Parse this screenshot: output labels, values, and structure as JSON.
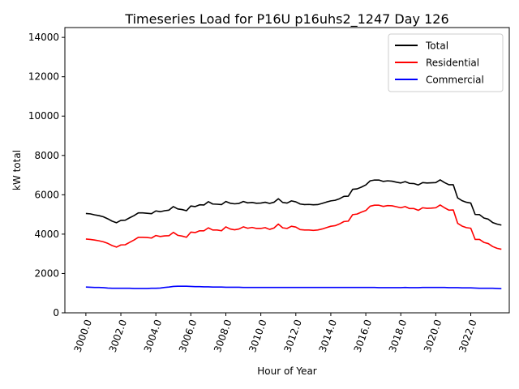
{
  "chart_data": {
    "type": "line",
    "title": "Timeseries Load for P16U p16uhs2_1247  Day 126",
    "xlabel": "Hour of Year",
    "ylabel": "kW total",
    "xlim": [
      2998.8,
      3024.2
    ],
    "ylim": [
      0,
      14500
    ],
    "xticks": [
      3000,
      3002,
      3004,
      3006,
      3008,
      3010,
      3012,
      3014,
      3016,
      3018,
      3020,
      3022
    ],
    "xtick_labels": [
      "3000.0",
      "3002.0",
      "3004.0",
      "3006.0",
      "3008.0",
      "3010.0",
      "3012.0",
      "3014.0",
      "3016.0",
      "3018.0",
      "3020.0",
      "3022.0"
    ],
    "yticks": [
      0,
      2000,
      4000,
      6000,
      8000,
      10000,
      12000,
      14000
    ],
    "ytick_labels": [
      "0",
      "2000",
      "4000",
      "6000",
      "8000",
      "10000",
      "12000",
      "14000"
    ],
    "grid": false,
    "legend_position": "top-right",
    "series": [
      {
        "name": "Total",
        "color": "#000000",
        "x": [
          3000.0,
          3000.25,
          3000.5,
          3000.75,
          3001.0,
          3001.25,
          3001.5,
          3001.75,
          3002.0,
          3002.25,
          3002.5,
          3002.75,
          3003.0,
          3003.25,
          3003.5,
          3003.75,
          3004.0,
          3004.25,
          3004.5,
          3004.75,
          3005.0,
          3005.25,
          3005.5,
          3005.75,
          3006.0,
          3006.25,
          3006.5,
          3006.75,
          3007.0,
          3007.25,
          3007.5,
          3007.75,
          3008.0,
          3008.25,
          3008.5,
          3008.75,
          3009.0,
          3009.25,
          3009.5,
          3009.75,
          3010.0,
          3010.25,
          3010.5,
          3010.75,
          3011.0,
          3011.25,
          3011.5,
          3011.75,
          3012.0,
          3012.25,
          3012.5,
          3012.75,
          3013.0,
          3013.25,
          3013.5,
          3013.75,
          3014.0,
          3014.25,
          3014.5,
          3014.75,
          3015.0,
          3015.25,
          3015.5,
          3015.75,
          3016.0,
          3016.25,
          3016.5,
          3016.75,
          3017.0,
          3017.25,
          3017.5,
          3017.75,
          3018.0,
          3018.25,
          3018.5,
          3018.75,
          3019.0,
          3019.25,
          3019.5,
          3019.75,
          3020.0,
          3020.25,
          3020.5,
          3020.75,
          3021.0,
          3021.25,
          3021.5,
          3021.75,
          3022.0,
          3022.25,
          3022.5,
          3022.75,
          3023.0,
          3023.25,
          3023.5,
          3023.75
        ],
        "values": [
          5050,
          5030,
          4980,
          4940,
          4880,
          4780,
          4660,
          4580,
          4700,
          4710,
          4830,
          4940,
          5080,
          5080,
          5060,
          5040,
          5180,
          5140,
          5190,
          5220,
          5400,
          5280,
          5250,
          5190,
          5430,
          5400,
          5490,
          5480,
          5650,
          5530,
          5520,
          5500,
          5660,
          5570,
          5540,
          5560,
          5660,
          5590,
          5610,
          5570,
          5580,
          5620,
          5560,
          5620,
          5800,
          5610,
          5580,
          5690,
          5640,
          5530,
          5500,
          5510,
          5490,
          5500,
          5560,
          5630,
          5690,
          5720,
          5800,
          5920,
          5930,
          6280,
          6300,
          6390,
          6500,
          6710,
          6750,
          6750,
          6680,
          6710,
          6690,
          6640,
          6600,
          6670,
          6580,
          6570,
          6500,
          6620,
          6600,
          6610,
          6620,
          6760,
          6620,
          6510,
          6510,
          5840,
          5700,
          5620,
          5580,
          5000,
          4990,
          4820,
          4760,
          4590,
          4510,
          4460
        ]
      },
      {
        "name": "Residential",
        "color": "#ff0000",
        "x": [
          3000.0,
          3000.25,
          3000.5,
          3000.75,
          3001.0,
          3001.25,
          3001.5,
          3001.75,
          3002.0,
          3002.25,
          3002.5,
          3002.75,
          3003.0,
          3003.25,
          3003.5,
          3003.75,
          3004.0,
          3004.25,
          3004.5,
          3004.75,
          3005.0,
          3005.25,
          3005.5,
          3005.75,
          3006.0,
          3006.25,
          3006.5,
          3006.75,
          3007.0,
          3007.25,
          3007.5,
          3007.75,
          3008.0,
          3008.25,
          3008.5,
          3008.75,
          3009.0,
          3009.25,
          3009.5,
          3009.75,
          3010.0,
          3010.25,
          3010.5,
          3010.75,
          3011.0,
          3011.25,
          3011.5,
          3011.75,
          3012.0,
          3012.25,
          3012.5,
          3012.75,
          3013.0,
          3013.25,
          3013.5,
          3013.75,
          3014.0,
          3014.25,
          3014.5,
          3014.75,
          3015.0,
          3015.25,
          3015.5,
          3015.75,
          3016.0,
          3016.25,
          3016.5,
          3016.75,
          3017.0,
          3017.25,
          3017.5,
          3017.75,
          3018.0,
          3018.25,
          3018.5,
          3018.75,
          3019.0,
          3019.25,
          3019.5,
          3019.75,
          3020.0,
          3020.25,
          3020.5,
          3020.75,
          3021.0,
          3021.25,
          3021.5,
          3021.75,
          3022.0,
          3022.25,
          3022.5,
          3022.75,
          3023.0,
          3023.25,
          3023.5,
          3023.75
        ],
        "values": [
          3750,
          3730,
          3700,
          3660,
          3610,
          3530,
          3420,
          3340,
          3450,
          3460,
          3580,
          3700,
          3840,
          3840,
          3830,
          3800,
          3930,
          3880,
          3910,
          3920,
          4090,
          3940,
          3900,
          3840,
          4100,
          4080,
          4170,
          4170,
          4320,
          4210,
          4210,
          4170,
          4370,
          4260,
          4220,
          4260,
          4370,
          4300,
          4340,
          4290,
          4290,
          4330,
          4240,
          4310,
          4510,
          4320,
          4290,
          4400,
          4360,
          4230,
          4210,
          4210,
          4190,
          4210,
          4260,
          4330,
          4400,
          4430,
          4520,
          4640,
          4660,
          4990,
          5020,
          5120,
          5200,
          5420,
          5470,
          5470,
          5410,
          5450,
          5440,
          5390,
          5340,
          5400,
          5300,
          5300,
          5210,
          5340,
          5310,
          5320,
          5340,
          5480,
          5340,
          5220,
          5230,
          4550,
          4410,
          4330,
          4300,
          3730,
          3730,
          3580,
          3520,
          3370,
          3280,
          3230
        ]
      },
      {
        "name": "Commercial",
        "color": "#0000ff",
        "x": [
          3000.0,
          3000.25,
          3000.5,
          3000.75,
          3001.0,
          3001.25,
          3001.5,
          3001.75,
          3002.0,
          3002.25,
          3002.5,
          3002.75,
          3003.0,
          3003.25,
          3003.5,
          3003.75,
          3004.0,
          3004.25,
          3004.5,
          3004.75,
          3005.0,
          3005.25,
          3005.5,
          3005.75,
          3006.0,
          3006.25,
          3006.5,
          3006.75,
          3007.0,
          3007.25,
          3007.5,
          3007.75,
          3008.0,
          3008.25,
          3008.5,
          3008.75,
          3009.0,
          3009.25,
          3009.5,
          3009.75,
          3010.0,
          3010.25,
          3010.5,
          3010.75,
          3011.0,
          3011.25,
          3011.5,
          3011.75,
          3012.0,
          3012.25,
          3012.5,
          3012.75,
          3013.0,
          3013.25,
          3013.5,
          3013.75,
          3014.0,
          3014.25,
          3014.5,
          3014.75,
          3015.0,
          3015.25,
          3015.5,
          3015.75,
          3016.0,
          3016.25,
          3016.5,
          3016.75,
          3017.0,
          3017.25,
          3017.5,
          3017.75,
          3018.0,
          3018.25,
          3018.5,
          3018.75,
          3019.0,
          3019.25,
          3019.5,
          3019.75,
          3020.0,
          3020.25,
          3020.5,
          3020.75,
          3021.0,
          3021.25,
          3021.5,
          3021.75,
          3022.0,
          3022.25,
          3022.5,
          3022.75,
          3023.0,
          3023.25,
          3023.5,
          3023.75
        ],
        "values": [
          1310,
          1300,
          1290,
          1290,
          1280,
          1260,
          1250,
          1250,
          1250,
          1250,
          1250,
          1240,
          1240,
          1240,
          1240,
          1250,
          1250,
          1260,
          1290,
          1310,
          1340,
          1350,
          1350,
          1350,
          1340,
          1330,
          1330,
          1320,
          1320,
          1310,
          1310,
          1310,
          1300,
          1300,
          1300,
          1300,
          1290,
          1290,
          1290,
          1290,
          1290,
          1290,
          1290,
          1290,
          1290,
          1290,
          1290,
          1290,
          1290,
          1290,
          1290,
          1290,
          1290,
          1290,
          1290,
          1290,
          1290,
          1290,
          1290,
          1290,
          1290,
          1290,
          1290,
          1290,
          1290,
          1290,
          1290,
          1280,
          1280,
          1280,
          1280,
          1280,
          1280,
          1290,
          1280,
          1280,
          1280,
          1290,
          1290,
          1290,
          1290,
          1290,
          1290,
          1280,
          1280,
          1280,
          1270,
          1270,
          1270,
          1260,
          1250,
          1250,
          1250,
          1250,
          1240,
          1230
        ]
      }
    ]
  }
}
